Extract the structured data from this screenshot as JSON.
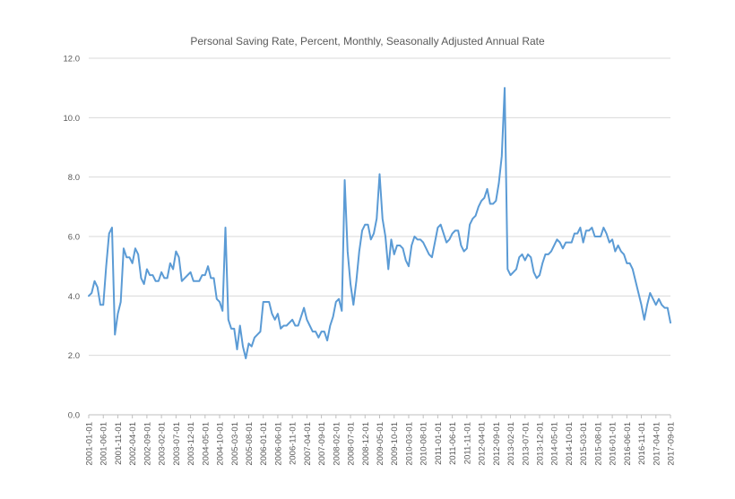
{
  "chart_data": {
    "type": "line",
    "title": "Personal Saving Rate, Percent, Monthly, Seasonally Adjusted Annual Rate",
    "xlabel": "",
    "ylabel": "",
    "ylim": [
      0,
      12
    ],
    "yticks": [
      "0.0",
      "2.0",
      "4.0",
      "6.0",
      "8.0",
      "10.0",
      "12.0"
    ],
    "grid": true,
    "x_start": "2001-01",
    "xtick_labels": [
      "2001-01-01",
      "2001-06-01",
      "2001-11-01",
      "2002-04-01",
      "2002-09-01",
      "2003-02-01",
      "2003-07-01",
      "2003-12-01",
      "2004-05-01",
      "2004-10-01",
      "2005-03-01",
      "2005-08-01",
      "2006-01-01",
      "2006-06-01",
      "2006-11-01",
      "2007-04-01",
      "2007-09-01",
      "2008-02-01",
      "2008-07-01",
      "2008-12-01",
      "2009-05-01",
      "2009-10-01",
      "2010-03-01",
      "2010-08-01",
      "2011-01-01",
      "2011-06-01",
      "2011-11-01",
      "2012-04-01",
      "2012-09-01",
      "2013-02-01",
      "2013-07-01",
      "2013-12-01",
      "2014-05-01",
      "2014-10-01",
      "2015-03-01",
      "2015-08-01",
      "2016-01-01",
      "2016-06-01",
      "2016-11-01",
      "2017-04-01",
      "2017-09-01"
    ],
    "series": [
      {
        "color": "#5b9bd5",
        "values": [
          4.0,
          4.1,
          4.5,
          4.3,
          3.7,
          3.7,
          5.0,
          6.1,
          6.3,
          2.7,
          3.4,
          3.8,
          5.6,
          5.3,
          5.3,
          5.1,
          5.6,
          5.4,
          4.6,
          4.4,
          4.9,
          4.7,
          4.7,
          4.5,
          4.5,
          4.8,
          4.6,
          4.6,
          5.1,
          4.9,
          5.5,
          5.3,
          4.5,
          4.6,
          4.7,
          4.8,
          4.5,
          4.5,
          4.5,
          4.7,
          4.7,
          5.0,
          4.6,
          4.6,
          3.9,
          3.8,
          3.5,
          6.3,
          3.2,
          2.9,
          2.9,
          2.2,
          3.0,
          2.3,
          1.9,
          2.4,
          2.3,
          2.6,
          2.7,
          2.8,
          3.8,
          3.8,
          3.8,
          3.4,
          3.2,
          3.4,
          2.9,
          3.0,
          3.0,
          3.1,
          3.2,
          3.0,
          3.0,
          3.3,
          3.6,
          3.2,
          3.0,
          2.8,
          2.8,
          2.6,
          2.8,
          2.8,
          2.5,
          3.0,
          3.3,
          3.8,
          3.9,
          3.5,
          7.9,
          5.5,
          4.4,
          3.7,
          4.5,
          5.5,
          6.2,
          6.4,
          6.4,
          5.9,
          6.1,
          6.6,
          8.1,
          6.6,
          6.0,
          4.9,
          5.9,
          5.4,
          5.7,
          5.7,
          5.6,
          5.2,
          5.0,
          5.7,
          6.0,
          5.9,
          5.9,
          5.8,
          5.6,
          5.4,
          5.3,
          5.8,
          6.3,
          6.4,
          6.1,
          5.8,
          5.9,
          6.1,
          6.2,
          6.2,
          5.7,
          5.5,
          5.6,
          6.4,
          6.6,
          6.7,
          7.0,
          7.2,
          7.3,
          7.6,
          7.1,
          7.1,
          7.2,
          7.8,
          8.7,
          11.0,
          4.9,
          4.7,
          4.8,
          4.9,
          5.3,
          5.4,
          5.2,
          5.4,
          5.3,
          4.8,
          4.6,
          4.7,
          5.1,
          5.4,
          5.4,
          5.5,
          5.7,
          5.9,
          5.8,
          5.6,
          5.8,
          5.8,
          5.8,
          6.1,
          6.1,
          6.3,
          5.8,
          6.2,
          6.2,
          6.3,
          6.0,
          6.0,
          6.0,
          6.3,
          6.1,
          5.8,
          5.9,
          5.5,
          5.7,
          5.5,
          5.4,
          5.1,
          5.1,
          4.9,
          4.5,
          4.1,
          3.7,
          3.2,
          3.7,
          4.1,
          3.9,
          3.7,
          3.9,
          3.7,
          3.6,
          3.6,
          3.1
        ]
      }
    ]
  }
}
